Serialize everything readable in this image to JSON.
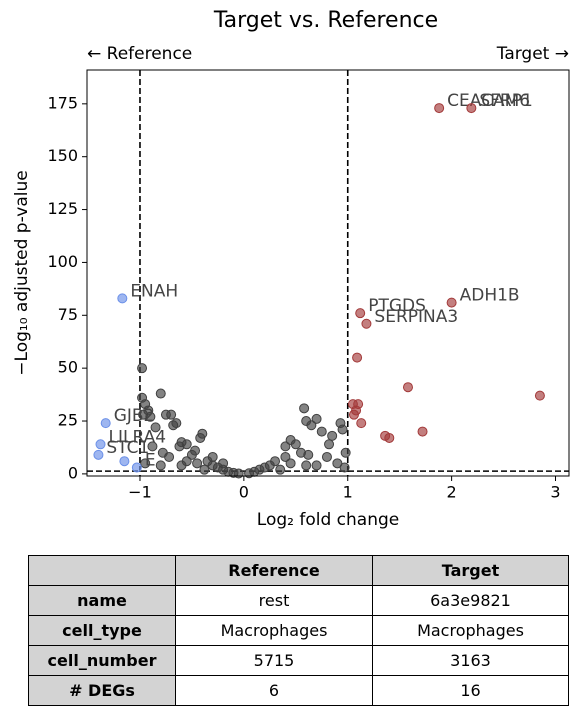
{
  "chart_data": {
    "type": "scatter",
    "title": "Target vs. Reference",
    "left_label": "← Reference",
    "right_label": "Target →",
    "xlabel": "Log₂ fold change",
    "ylabel": "−Log₁₀ adjusted p-value",
    "xlim": [
      -1.51,
      3.13
    ],
    "ylim": [
      -1,
      191
    ],
    "xticks": [
      {
        "value": -1,
        "label": "−1"
      },
      0,
      1,
      2,
      3
    ],
    "yticks": [
      0,
      25,
      50,
      75,
      100,
      125,
      150,
      175
    ],
    "vlines": [
      -1,
      1
    ],
    "hlines": [
      1.3
    ],
    "series": [
      {
        "color": "#404040",
        "x": [
          -0.98,
          -0.98,
          -0.95,
          -0.97,
          -0.92,
          -0.9,
          -0.8,
          -0.75,
          -0.7,
          -0.65,
          -0.68,
          -0.6,
          -0.62,
          -0.55,
          -0.4,
          -0.42,
          -0.47,
          -0.5,
          -0.85,
          -0.88,
          -0.78,
          -0.72,
          -0.95,
          -0.55,
          -0.35,
          -0.3,
          -0.25,
          -0.2,
          -0.15,
          -0.1,
          -0.05,
          -0.45,
          -0.3,
          -0.6,
          -0.8,
          -0.2,
          -0.38,
          0.58,
          0.6,
          0.65,
          0.75,
          0.7,
          0.93,
          0.95,
          0.85,
          0.45,
          0.5,
          0.4,
          0.55,
          0.62,
          0.8,
          0.9,
          0.97,
          0.3,
          0.25,
          0.2,
          0.15,
          0.1,
          0.05,
          0.35,
          0.45,
          0.7,
          0.82,
          0.98,
          0.6,
          0.4
        ],
        "values": [
          50,
          36,
          33,
          28,
          30,
          27,
          38,
          28,
          28,
          24,
          23,
          15,
          13,
          14,
          19,
          17,
          11,
          9,
          22,
          13,
          10,
          8,
          5,
          6,
          6,
          4,
          3,
          2,
          1,
          0.5,
          0.2,
          5,
          8,
          4,
          4,
          5,
          2,
          31,
          25,
          23,
          20,
          26,
          24,
          21,
          18,
          16,
          14,
          13,
          10,
          9,
          8,
          5,
          3,
          6,
          4,
          3,
          2,
          1,
          0.3,
          2,
          5,
          4,
          14,
          10,
          4,
          8
        ]
      },
      {
        "color": "#a33a3a",
        "x": [
          1.88,
          2.19,
          2.0,
          1.12,
          1.18,
          1.09,
          1.58,
          2.85,
          1.05,
          1.1,
          1.08,
          1.13,
          1.36,
          1.4,
          1.72,
          1.06
        ],
        "values": [
          173,
          173,
          81,
          76,
          71,
          55,
          41,
          37,
          33,
          33,
          30,
          24,
          18,
          17,
          20,
          28
        ],
        "labels": [
          "CEACAM6",
          "SFRP1",
          "ADH1B",
          "PTGDS",
          "SERPINA3",
          null,
          null,
          null,
          null,
          null,
          null,
          null,
          null,
          null,
          null,
          null
        ]
      },
      {
        "color": "#6a8fe8",
        "x": [
          -1.17,
          -1.33,
          -1.38,
          -1.4,
          -1.15,
          -1.03
        ],
        "values": [
          83,
          24,
          14,
          9,
          6,
          3
        ],
        "labels": [
          "ENAH",
          "GJB2",
          "LILRA4",
          "STC1",
          null,
          "E"
        ]
      }
    ]
  },
  "table": {
    "header": [
      "Reference",
      "Target"
    ],
    "rows": [
      [
        "name",
        "rest",
        "6a3e9821"
      ],
      [
        "cell_type",
        "Macrophages",
        "Macrophages"
      ],
      [
        "cell_number",
        "5715",
        "3163"
      ],
      [
        "# DEGs",
        "6",
        "16"
      ]
    ]
  }
}
